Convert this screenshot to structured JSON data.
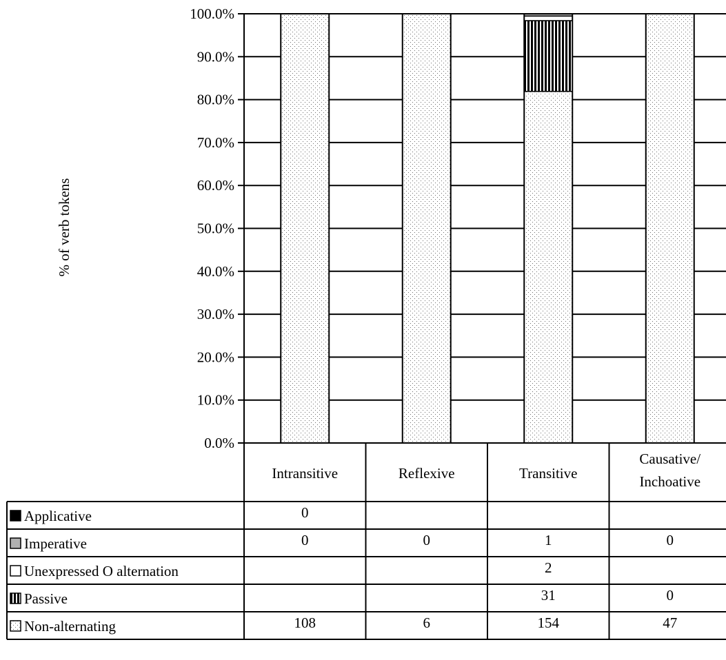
{
  "chart_data": {
    "type": "bar",
    "stacked": true,
    "normalized": true,
    "ylabel": "% of verb tokens",
    "ylim": [
      0,
      100
    ],
    "yticks": [
      "0.0%",
      "10.0%",
      "20.0%",
      "30.0%",
      "40.0%",
      "50.0%",
      "60.0%",
      "70.0%",
      "80.0%",
      "90.0%",
      "100.0%"
    ],
    "grid": true,
    "categories": [
      {
        "line1": "Intransitive",
        "line2": ""
      },
      {
        "line1": "Reflexive",
        "line2": ""
      },
      {
        "line1": "Transitive",
        "line2": ""
      },
      {
        "line1": "Causative/",
        "line2": "Inchoative"
      }
    ],
    "series": [
      {
        "name": "Non-alternating",
        "pattern": "dots",
        "values": [
          108,
          6,
          154,
          47
        ],
        "labels": [
          "108",
          "6",
          "154",
          "47"
        ]
      },
      {
        "name": "Passive",
        "pattern": "vertical-stripes",
        "values": [
          null,
          null,
          31,
          0
        ],
        "labels": [
          "",
          "",
          "31",
          "0"
        ]
      },
      {
        "name": "Unexpressed O alternation",
        "pattern": "white",
        "values": [
          null,
          null,
          2,
          null
        ],
        "labels": [
          "",
          "",
          "2",
          ""
        ]
      },
      {
        "name": "Imperative",
        "pattern": "gray",
        "values": [
          0,
          0,
          1,
          0
        ],
        "labels": [
          "0",
          "0",
          "1",
          "0"
        ]
      },
      {
        "name": "Applicative",
        "pattern": "black",
        "values": [
          0,
          null,
          null,
          null
        ],
        "labels": [
          "0",
          "",
          "",
          ""
        ]
      }
    ],
    "table_row_order": [
      "Applicative",
      "Imperative",
      "Unexpressed O alternation",
      "Passive",
      "Non-alternating"
    ],
    "colors": {
      "axis": "#000000",
      "gray_fill": "#b0b0b0",
      "dot": "#6a6a6a",
      "stripe": "#000000"
    }
  }
}
